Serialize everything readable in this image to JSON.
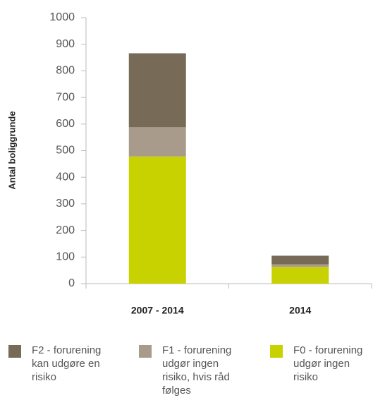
{
  "chart_data": {
    "type": "stacked_bar",
    "y_label": "Antal boliggrunde",
    "categories": [
      "2007 - 2014",
      "2014"
    ],
    "series": [
      {
        "name": "F2 - forurening kan udgøre en risiko",
        "color": "#776a57",
        "values": [
          278,
          32
        ]
      },
      {
        "name": "F1 - forurening udgør ingen risiko, hvis råd følges",
        "color": "#a89b8c",
        "values": [
          110,
          10
        ]
      },
      {
        "name": "F0 - forurening udgør ingen risiko",
        "color": "#c8d200",
        "values": [
          478,
          63
        ]
      }
    ],
    "ylim": [
      0,
      1000
    ],
    "yticks": [
      0,
      100,
      200,
      300,
      400,
      500,
      600,
      700,
      800,
      900,
      1000
    ],
    "grid": false
  }
}
